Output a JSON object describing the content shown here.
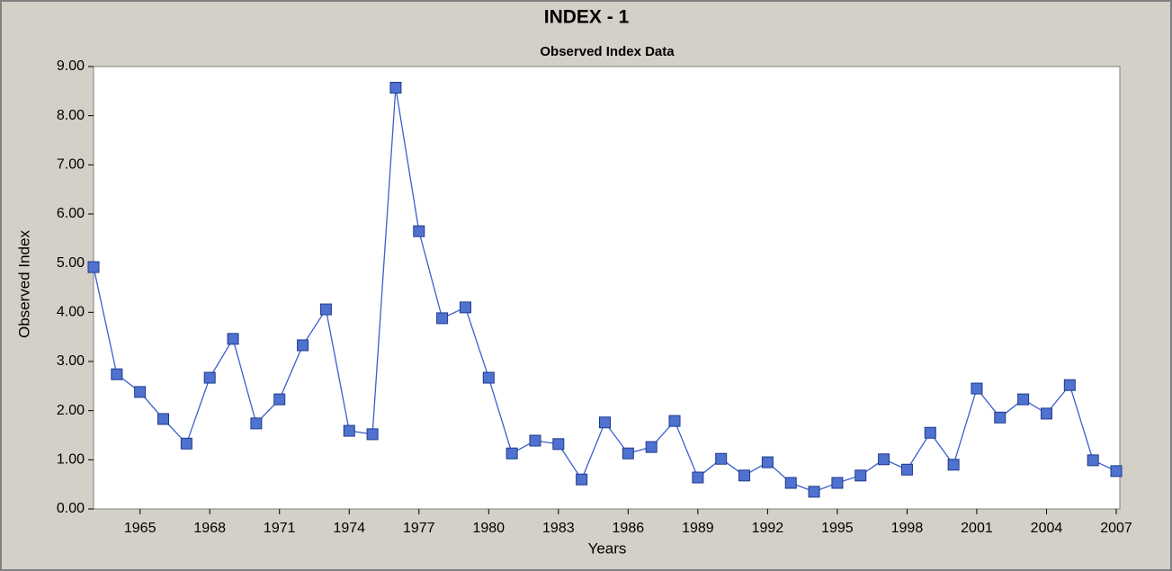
{
  "chart_data": {
    "type": "line",
    "title": "INDEX - 1",
    "subtitle": "Observed Index Data",
    "x_label": "Years",
    "y_label": "Observed Index",
    "x": [
      1963,
      1964,
      1965,
      1966,
      1967,
      1968,
      1969,
      1970,
      1971,
      1972,
      1973,
      1974,
      1975,
      1976,
      1977,
      1978,
      1979,
      1980,
      1981,
      1982,
      1983,
      1984,
      1985,
      1986,
      1987,
      1988,
      1989,
      1990,
      1991,
      1992,
      1993,
      1994,
      1995,
      1996,
      1997,
      1998,
      1999,
      2000,
      2001,
      2002,
      2003,
      2004,
      2005,
      2006,
      2007
    ],
    "series": [
      {
        "name": "Observed Index",
        "color": "#4f72d0",
        "values": [
          4.92,
          2.74,
          2.38,
          1.83,
          1.33,
          2.67,
          3.46,
          1.74,
          2.23,
          3.33,
          4.06,
          1.59,
          1.52,
          8.57,
          5.65,
          3.88,
          4.1,
          2.67,
          1.13,
          1.39,
          1.32,
          0.6,
          1.76,
          1.13,
          1.26,
          1.79,
          0.64,
          1.02,
          0.68,
          0.95,
          0.53,
          0.35,
          0.53,
          0.68,
          1.01,
          0.8,
          1.55,
          0.9,
          2.45,
          1.86,
          2.23,
          1.94,
          2.52,
          0.99,
          0.77
        ]
      }
    ],
    "xlim": [
      1963,
      2007
    ],
    "xticks": [
      1965,
      1968,
      1971,
      1974,
      1977,
      1980,
      1983,
      1986,
      1989,
      1992,
      1995,
      1998,
      2001,
      2004,
      2007
    ],
    "ylim": [
      0,
      9
    ],
    "yticks": [
      {
        "value": 0,
        "label": "0.00"
      },
      {
        "value": 1,
        "label": "1.00"
      },
      {
        "value": 2,
        "label": "2.00"
      },
      {
        "value": 3,
        "label": "3.00"
      },
      {
        "value": 4,
        "label": "4.00"
      },
      {
        "value": 5,
        "label": "5.00"
      },
      {
        "value": 6,
        "label": "6.00"
      },
      {
        "value": 7,
        "label": "7.00"
      },
      {
        "value": 8,
        "label": "8.00"
      },
      {
        "value": 9,
        "label": "9.00"
      }
    ],
    "grid": false
  }
}
